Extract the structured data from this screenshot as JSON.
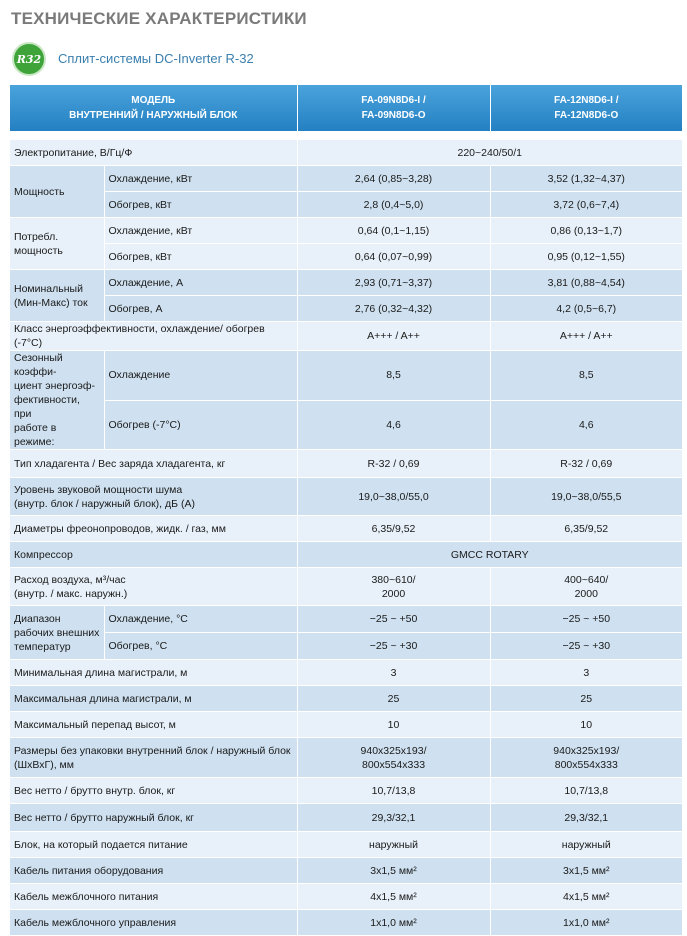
{
  "title": "ТЕХНИЧЕСКИЕ ХАРАКТЕРИСТИКИ",
  "logo_text": "R32",
  "subtitle": "Сплит-системы DC-Inverter R-32",
  "header": {
    "model_line1": "МОДЕЛЬ",
    "model_line2": "ВНУТРЕННИЙ / НАРУЖНЫЙ БЛОК",
    "m1_line1": "FA-09N8D6-I /",
    "m1_line2": "FA-09N8D6-O",
    "m2_line1": "FA-12N8D6-I /",
    "m2_line2": "FA-12N8D6-O"
  },
  "rows": {
    "power": {
      "label": "Электропитание, В/Гц/Ф",
      "value": "220~240/50/1"
    },
    "capacity": {
      "label": "Мощность",
      "cool_label": "Охлаждение, кВт",
      "cool_v1": "2,64 (0,85~3,28)",
      "cool_v2": "3,52 (1,32~4,37)",
      "heat_label": "Обогрев, кВт",
      "heat_v1": "2,8 (0,4~5,0)",
      "heat_v2": "3,72 (0,6~7,4)"
    },
    "consumption": {
      "label1": "Потребл.",
      "label2": "мощность",
      "cool_label": "Охлаждение, кВт",
      "cool_v1": "0,64 (0,1~1,15)",
      "cool_v2": "0,86 (0,13~1,7)",
      "heat_label": "Обогрев, кВт",
      "heat_v1": "0,64 (0,07~0,99)",
      "heat_v2": "0,95 (0,12~1,55)"
    },
    "current": {
      "label1": "Номинальный",
      "label2": "(Мин-Макс) ток",
      "cool_label": "Охлаждение, А",
      "cool_v1": "2,93 (0,71~3,37)",
      "cool_v2": "3,81 (0,88~4,54)",
      "heat_label": "Обогрев, А",
      "heat_v1": "2,76 (0,32~4,32)",
      "heat_v2": "4,2 (0,5~6,7)"
    },
    "energy_class": {
      "label": "Класс энергоэффективности, охлаждение/ обогрев (-7°С)",
      "v1": "A+++ / A++",
      "v2": "A+++ / A++"
    },
    "seasonal": {
      "label1": "Сезонный коэффи-",
      "label2": "циент энергоэф-",
      "label3": "фективности, при",
      "label4": "работе в режиме:",
      "cool_label": "Охлаждение",
      "cool_v1": "8,5",
      "cool_v2": "8,5",
      "heat_label": "Обогрев  (-7°С)",
      "heat_v1": "4,6",
      "heat_v2": "4,6"
    },
    "refrigerant": {
      "label": "Тип хладагента / Вес заряда хладагента, кг",
      "v1": "R-32 / 0,69",
      "v2": "R-32  / 0,69"
    },
    "noise": {
      "label1": "Уровень звуковой мощности шума",
      "label2": "(внутр. блок / наружный блок), дБ (А)",
      "v1": "19,0~38,0/55,0",
      "v2": "19,0~38,0/55,5"
    },
    "pipes": {
      "label": "Диаметры фреонопроводов, жидк. / газ, мм",
      "v1": "6,35/9,52",
      "v2": "6,35/9,52"
    },
    "compressor": {
      "label": "Компрессор",
      "value": "GMCC ROTARY"
    },
    "airflow": {
      "label1": "Расход воздуха, м³/час",
      "label2": "(внутр. / макс. наружн.)",
      "v1a": "380~610/",
      "v1b": "2000",
      "v2a": "400~640/",
      "v2b": "2000"
    },
    "temp_range": {
      "label1": "Диапазон",
      "label2": "рабочих внешних",
      "label3": "температур",
      "cool_label": "Охлаждение, °С",
      "cool_v1": "−25 ~ +50",
      "cool_v2": "−25 ~ +50",
      "heat_label": "Обогрев, °С",
      "heat_v1": "−25 ~ +30",
      "heat_v2": "−25 ~ +30"
    },
    "min_length": {
      "label": "Минимальная длина магистрали, м",
      "v1": "3",
      "v2": "3"
    },
    "max_length": {
      "label": "Максимальная длина магистрали, м",
      "v1": "25",
      "v2": "25"
    },
    "max_height": {
      "label": "Максимальный перепад высот, м",
      "v1": "10",
      "v2": "10"
    },
    "dimensions": {
      "label1": "Размеры без упаковки внутренний блок / наружный блок",
      "label2": "(ШхВхГ), мм",
      "v1a": "940x325x193/",
      "v1b": "800x554x333",
      "v2a": "940x325x193/",
      "v2b": "800x554x333"
    },
    "weight_in": {
      "label": "Вес нетто / брутто внутр. блок, кг",
      "v1": "10,7/13,8",
      "v2": "10,7/13,8"
    },
    "weight_out": {
      "label": "Вес нетто / брутто наружный блок, кг",
      "v1": "29,3/32,1",
      "v2": "29,3/32,1"
    },
    "power_unit": {
      "label": "Блок, на который подается питание",
      "v1": "наружный",
      "v2": "наружный"
    },
    "power_cable": {
      "label": "Кабель питания оборудования",
      "v1": "3x1,5 мм²",
      "v2": "3x1,5 мм²"
    },
    "inter_power": {
      "label": "Кабель межблочного питания",
      "v1": "4x1,5 мм²",
      "v2": "4x1,5 мм²"
    },
    "inter_control": {
      "label": "Кабель межблочного управления",
      "v1": "1x1,0 мм²",
      "v2": "1x1,0 мм²"
    }
  }
}
